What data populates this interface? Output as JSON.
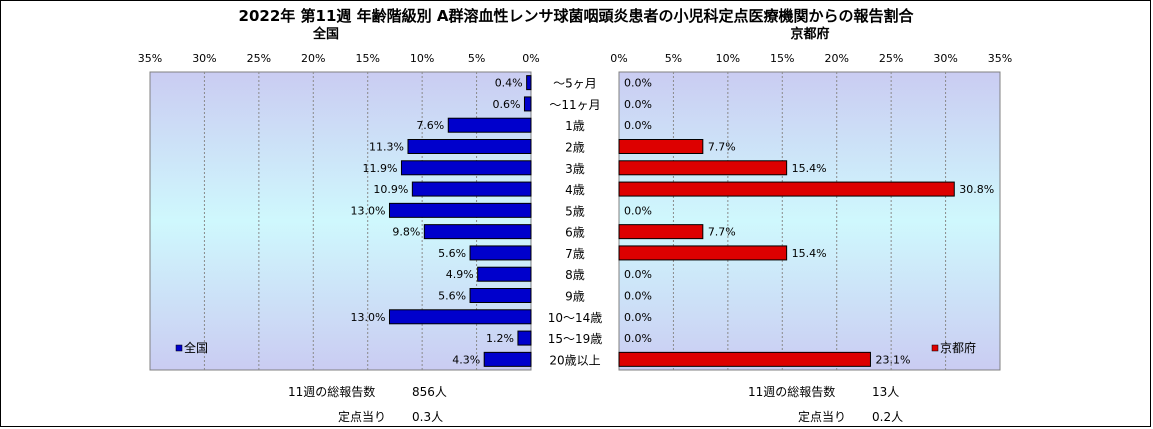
{
  "chart_data": {
    "type": "bar",
    "title": "2022年 第11週  年齢階級別 A群溶血性レンサ球菌咽頭炎患者の小児科定点医療機関からの報告割合",
    "categories": [
      "～5ヶ月",
      "～11ヶ月",
      "1歳",
      "2歳",
      "3歳",
      "4歳",
      "5歳",
      "6歳",
      "7歳",
      "8歳",
      "9歳",
      "10～14歳",
      "15～19歳",
      "20歳以上"
    ],
    "xlim": [
      0,
      35
    ],
    "ticks": [
      "0%",
      "5%",
      "10%",
      "15%",
      "20%",
      "25%",
      "30%",
      "35%"
    ],
    "tick_values": [
      0,
      5,
      10,
      15,
      20,
      25,
      30,
      35
    ],
    "series": [
      {
        "name": "全国",
        "panel_title": "全国",
        "color": "#0000CC",
        "values": [
          0.4,
          0.6,
          7.6,
          11.3,
          11.9,
          10.9,
          13.0,
          9.8,
          5.6,
          4.9,
          5.6,
          13.0,
          1.2,
          4.3
        ],
        "labels": [
          "0.4%",
          "0.6%",
          "7.6%",
          "11.3%",
          "11.9%",
          "10.9%",
          "13.0%",
          "9.8%",
          "5.6%",
          "4.9%",
          "5.6%",
          "13.0%",
          "1.2%",
          "4.3%"
        ]
      },
      {
        "name": "京都府",
        "panel_title": "京都府",
        "color": "#DD0000",
        "values": [
          0.0,
          0.0,
          0.0,
          7.7,
          15.4,
          30.8,
          0.0,
          7.7,
          15.4,
          0.0,
          0.0,
          0.0,
          0.0,
          23.1
        ],
        "labels": [
          "0.0%",
          "0.0%",
          "0.0%",
          "7.7%",
          "15.4%",
          "30.8%",
          "0.0%",
          "7.7%",
          "15.4%",
          "0.0%",
          "0.0%",
          "0.0%",
          "0.0%",
          "23.1%"
        ]
      }
    ],
    "grid": true,
    "legend_position": "bottom-left"
  },
  "footer": {
    "national": {
      "total_label": "11週の総報告数",
      "total_value": "856人",
      "per_label": "定点当り",
      "per_value": "0.3人"
    },
    "kyoto": {
      "total_label": "11週の総報告数",
      "total_value": "13人",
      "per_label": "定点当り",
      "per_value": "0.2人"
    }
  }
}
